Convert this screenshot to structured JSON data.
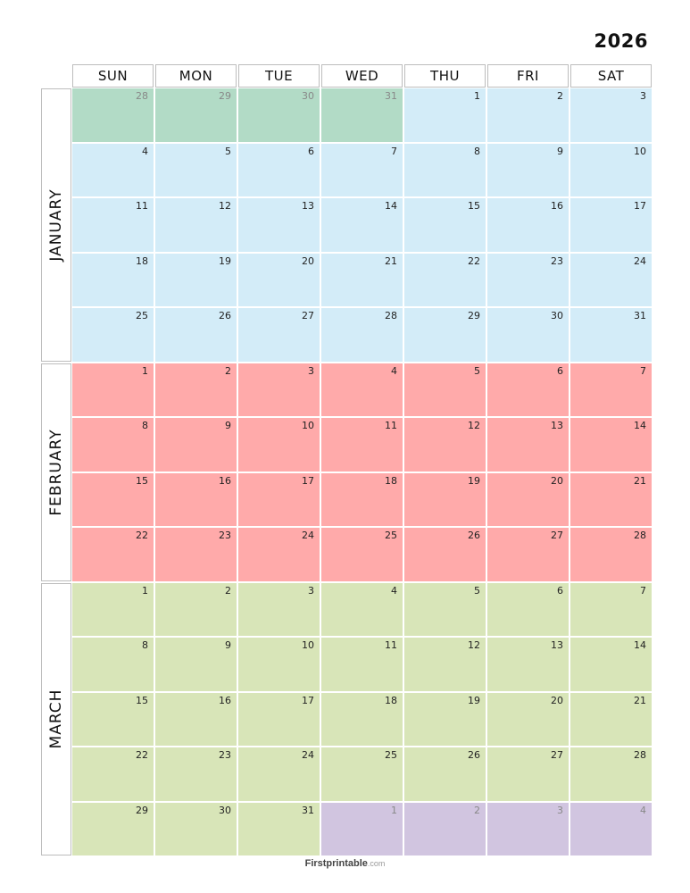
{
  "year": "2026",
  "weekdays": [
    "SUN",
    "MON",
    "TUE",
    "WED",
    "THU",
    "FRI",
    "SAT"
  ],
  "colors": {
    "prev_month": "#b2dbc6",
    "january": "#d3ecf8",
    "february": "#ffaaaa",
    "march": "#d8e5b8",
    "next_month": "#d1c5e0"
  },
  "months": [
    {
      "name": "JANUARY",
      "color_key": "january",
      "weeks": [
        [
          {
            "d": "28",
            "o": "prev_month"
          },
          {
            "d": "29",
            "o": "prev_month"
          },
          {
            "d": "30",
            "o": "prev_month"
          },
          {
            "d": "31",
            "o": "prev_month"
          },
          {
            "d": "1"
          },
          {
            "d": "2"
          },
          {
            "d": "3"
          }
        ],
        [
          {
            "d": "4"
          },
          {
            "d": "5"
          },
          {
            "d": "6"
          },
          {
            "d": "7"
          },
          {
            "d": "8"
          },
          {
            "d": "9"
          },
          {
            "d": "10"
          }
        ],
        [
          {
            "d": "11"
          },
          {
            "d": "12"
          },
          {
            "d": "13"
          },
          {
            "d": "14"
          },
          {
            "d": "15"
          },
          {
            "d": "16"
          },
          {
            "d": "17"
          }
        ],
        [
          {
            "d": "18"
          },
          {
            "d": "19"
          },
          {
            "d": "20"
          },
          {
            "d": "21"
          },
          {
            "d": "22"
          },
          {
            "d": "23"
          },
          {
            "d": "24"
          }
        ],
        [
          {
            "d": "25"
          },
          {
            "d": "26"
          },
          {
            "d": "27"
          },
          {
            "d": "28"
          },
          {
            "d": "29"
          },
          {
            "d": "30"
          },
          {
            "d": "31"
          }
        ]
      ]
    },
    {
      "name": "FEBRUARY",
      "color_key": "february",
      "weeks": [
        [
          {
            "d": "1"
          },
          {
            "d": "2"
          },
          {
            "d": "3"
          },
          {
            "d": "4"
          },
          {
            "d": "5"
          },
          {
            "d": "6"
          },
          {
            "d": "7"
          }
        ],
        [
          {
            "d": "8"
          },
          {
            "d": "9"
          },
          {
            "d": "10"
          },
          {
            "d": "11"
          },
          {
            "d": "12"
          },
          {
            "d": "13"
          },
          {
            "d": "14"
          }
        ],
        [
          {
            "d": "15"
          },
          {
            "d": "16"
          },
          {
            "d": "17"
          },
          {
            "d": "18"
          },
          {
            "d": "19"
          },
          {
            "d": "20"
          },
          {
            "d": "21"
          }
        ],
        [
          {
            "d": "22"
          },
          {
            "d": "23"
          },
          {
            "d": "24"
          },
          {
            "d": "25"
          },
          {
            "d": "26"
          },
          {
            "d": "27"
          },
          {
            "d": "28"
          }
        ]
      ]
    },
    {
      "name": "MARCH",
      "color_key": "march",
      "weeks": [
        [
          {
            "d": "1"
          },
          {
            "d": "2"
          },
          {
            "d": "3"
          },
          {
            "d": "4"
          },
          {
            "d": "5"
          },
          {
            "d": "6"
          },
          {
            "d": "7"
          }
        ],
        [
          {
            "d": "8"
          },
          {
            "d": "9"
          },
          {
            "d": "10"
          },
          {
            "d": "11"
          },
          {
            "d": "12"
          },
          {
            "d": "13"
          },
          {
            "d": "14"
          }
        ],
        [
          {
            "d": "15"
          },
          {
            "d": "16"
          },
          {
            "d": "17"
          },
          {
            "d": "18"
          },
          {
            "d": "19"
          },
          {
            "d": "20"
          },
          {
            "d": "21"
          }
        ],
        [
          {
            "d": "22"
          },
          {
            "d": "23"
          },
          {
            "d": "24"
          },
          {
            "d": "25"
          },
          {
            "d": "26"
          },
          {
            "d": "27"
          },
          {
            "d": "28"
          }
        ],
        [
          {
            "d": "29"
          },
          {
            "d": "30"
          },
          {
            "d": "31"
          },
          {
            "d": "1",
            "o": "next_month"
          },
          {
            "d": "2",
            "o": "next_month"
          },
          {
            "d": "3",
            "o": "next_month"
          },
          {
            "d": "4",
            "o": "next_month"
          }
        ]
      ]
    }
  ],
  "footer": {
    "brand": "Firstprintable",
    "suffix": ".com"
  }
}
